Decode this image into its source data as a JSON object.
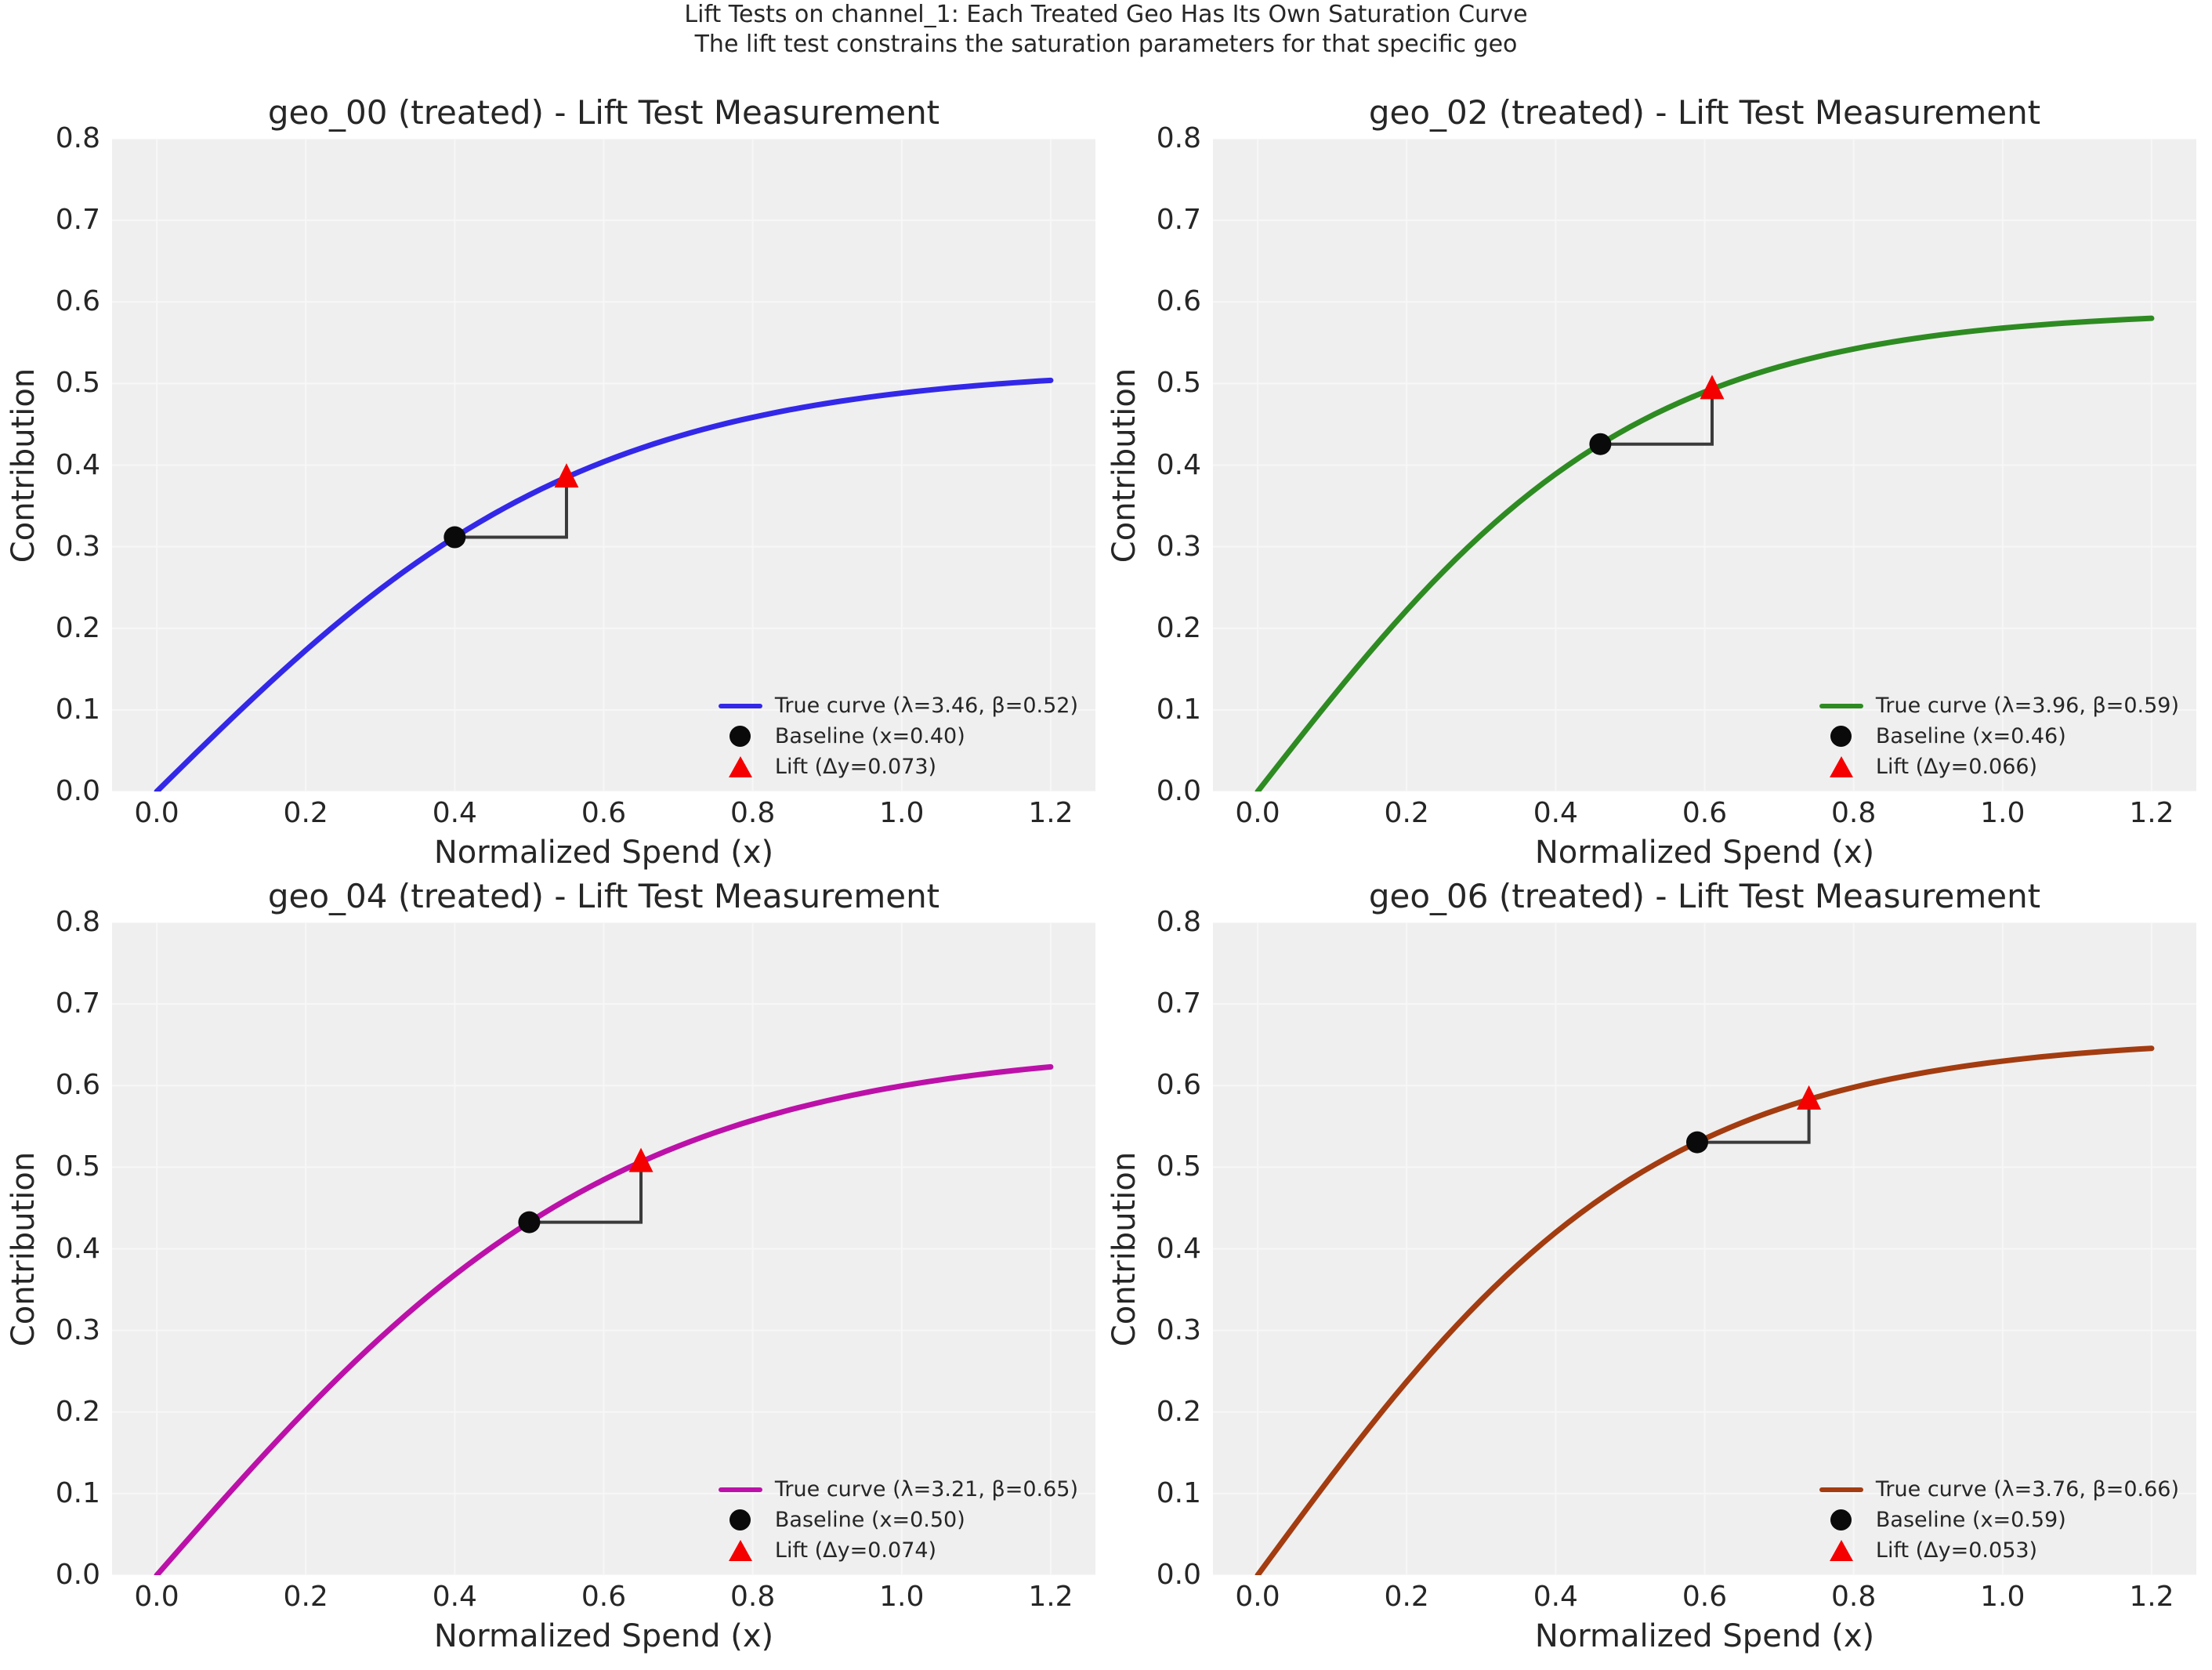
{
  "suptitle": {
    "line1": "Lift Tests on channel_1: Each Treated Geo Has Its Own Saturation Curve",
    "line2": "The lift test constrains the saturation parameters for that specific geo"
  },
  "axis": {
    "xlabel": "Normalized Spend (x)",
    "ylabel": "Contribution"
  },
  "ticks": {
    "x": [
      "0.0",
      "0.2",
      "0.4",
      "0.6",
      "0.8",
      "1.0",
      "1.2"
    ],
    "x_values": [
      0.0,
      0.2,
      0.4,
      0.6,
      0.8,
      1.0,
      1.2
    ],
    "y": [
      "0.0",
      "0.1",
      "0.2",
      "0.3",
      "0.4",
      "0.5",
      "0.6",
      "0.7",
      "0.8"
    ],
    "y_values": [
      0.0,
      0.1,
      0.2,
      0.3,
      0.4,
      0.5,
      0.6,
      0.7,
      0.8
    ]
  },
  "colors": {
    "figure_bg": "#ffffff",
    "axes_bg": "#efefef",
    "grid": "#f7f7f7",
    "text": "#262626",
    "baseline_marker": "#0a0a0a",
    "lift_marker": "#f40000",
    "connector": "#3a3a3a"
  },
  "chart_data": [
    {
      "type": "line",
      "title": "geo_00 (treated) - Lift Test Measurement",
      "curve_equation": "y = beta*(1-exp(-lambda*x))/(1+exp(-lambda*x))",
      "lambda": 3.46,
      "beta": 0.52,
      "color": "#3328e8",
      "x_range": [
        0,
        1.2
      ],
      "xlim": [
        -0.06,
        1.26
      ],
      "ylim": [
        0,
        0.8
      ],
      "baseline": {
        "x": 0.4,
        "y": 0.312
      },
      "lift": {
        "x": 0.55,
        "y": 0.385,
        "delta_y": 0.073
      },
      "legend": [
        {
          "marker": "line",
          "label": "True curve (λ=3.46, β=0.52)"
        },
        {
          "marker": "circle",
          "label": "Baseline (x=0.40)"
        },
        {
          "marker": "triangle",
          "label": "Lift (Δy=0.073)"
        }
      ]
    },
    {
      "type": "line",
      "title": "geo_02 (treated) - Lift Test Measurement",
      "curve_equation": "y = beta*(1-exp(-lambda*x))/(1+exp(-lambda*x))",
      "lambda": 3.96,
      "beta": 0.59,
      "color": "#2e8b22",
      "x_range": [
        0,
        1.2
      ],
      "xlim": [
        -0.06,
        1.26
      ],
      "ylim": [
        0,
        0.8
      ],
      "baseline": {
        "x": 0.46,
        "y": 0.426
      },
      "lift": {
        "x": 0.61,
        "y": 0.493,
        "delta_y": 0.066
      },
      "legend": [
        {
          "marker": "line",
          "label": "True curve (λ=3.96, β=0.59)"
        },
        {
          "marker": "circle",
          "label": "Baseline (x=0.46)"
        },
        {
          "marker": "triangle",
          "label": "Lift (Δy=0.066)"
        }
      ]
    },
    {
      "type": "line",
      "title": "geo_04 (treated) - Lift Test Measurement",
      "curve_equation": "y = beta*(1-exp(-lambda*x))/(1+exp(-lambda*x))",
      "lambda": 3.21,
      "beta": 0.65,
      "color": "#bc11a8",
      "x_range": [
        0,
        1.2
      ],
      "xlim": [
        -0.06,
        1.26
      ],
      "ylim": [
        0,
        0.8
      ],
      "baseline": {
        "x": 0.5,
        "y": 0.432
      },
      "lift": {
        "x": 0.65,
        "y": 0.507,
        "delta_y": 0.074
      },
      "legend": [
        {
          "marker": "line",
          "label": "True curve (λ=3.21, β=0.65)"
        },
        {
          "marker": "circle",
          "label": "Baseline (x=0.50)"
        },
        {
          "marker": "triangle",
          "label": "Lift (Δy=0.074)"
        }
      ]
    },
    {
      "type": "line",
      "title": "geo_06 (treated) - Lift Test Measurement",
      "curve_equation": "y = beta*(1-exp(-lambda*x))/(1+exp(-lambda*x))",
      "lambda": 3.76,
      "beta": 0.66,
      "color": "#a33c10",
      "x_range": [
        0,
        1.2
      ],
      "xlim": [
        -0.06,
        1.26
      ],
      "ylim": [
        0,
        0.8
      ],
      "baseline": {
        "x": 0.59,
        "y": 0.531
      },
      "lift": {
        "x": 0.74,
        "y": 0.583,
        "delta_y": 0.053
      },
      "legend": [
        {
          "marker": "line",
          "label": "True curve (λ=3.76, β=0.66)"
        },
        {
          "marker": "circle",
          "label": "Baseline (x=0.59)"
        },
        {
          "marker": "triangle",
          "label": "Lift (Δy=0.053)"
        }
      ]
    }
  ]
}
